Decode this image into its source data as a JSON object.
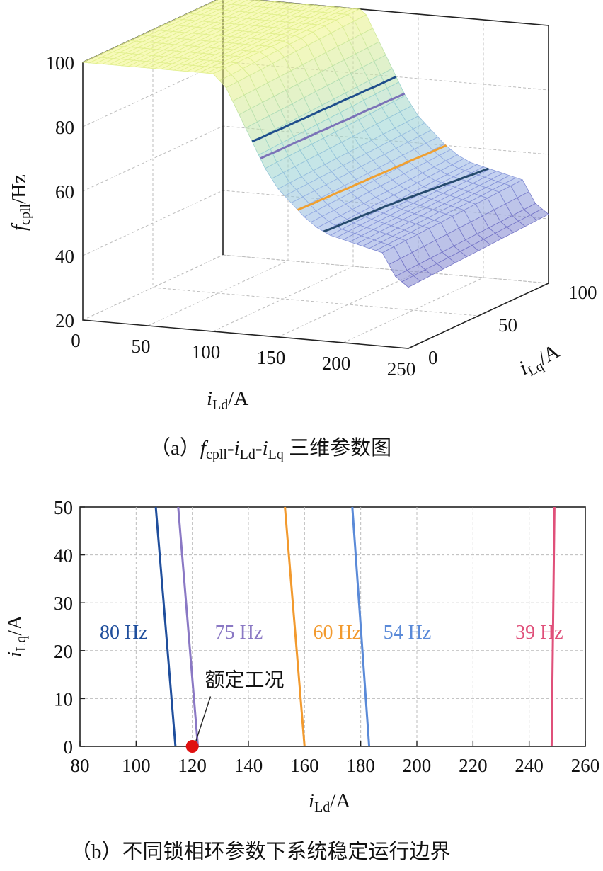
{
  "chart_data": [
    {
      "type": "surface",
      "caption": {
        "prefix": "（a）",
        "f": "f",
        "f_sub": "cpll",
        "dash1": "-",
        "i1": "i",
        "i1_sub": "Ld",
        "dash2": "-",
        "i2": "i",
        "i2_sub": "Lq",
        "suffix": " 三维参数图"
      },
      "xlabel": {
        "main": "i",
        "sub": "Ld",
        "unit": "/A"
      },
      "ylabel": {
        "main": "i",
        "sub": "Lq",
        "unit": "/A"
      },
      "zlabel": {
        "main": "f",
        "sub": "cpll",
        "unit": "/Hz"
      },
      "x_ticks": [
        "0",
        "50",
        "100",
        "150",
        "200",
        "250"
      ],
      "y_ticks": [
        "0",
        "50",
        "100"
      ],
      "z_ticks": [
        "20",
        "40",
        "60",
        "80",
        "100"
      ],
      "xlim": [
        0,
        250
      ],
      "ylim": [
        0,
        100
      ],
      "zlim": [
        20,
        100
      ],
      "grid": true,
      "surface": {
        "x": [
          0,
          20,
          40,
          60,
          80,
          100,
          110,
          120,
          130,
          140,
          150,
          160,
          170,
          180,
          190,
          200,
          210,
          220,
          230,
          240,
          250
        ],
        "z": [
          100,
          100,
          100,
          100,
          100,
          100,
          96,
          88,
          80,
          72,
          66,
          62,
          58,
          55,
          53,
          52,
          51,
          50,
          49,
          42,
          39
        ],
        "lq_slope": 0.6
      },
      "contours": [
        {
          "level": 80,
          "color": "#1f4e8c"
        },
        {
          "level": 75,
          "color": "#7b72b8"
        },
        {
          "level": 60,
          "color": "#f0a030"
        },
        {
          "level": 54,
          "color": "#264a6e"
        },
        {
          "level": 39,
          "color": "#d43c6c"
        }
      ]
    },
    {
      "type": "line",
      "caption": "（b）不同锁相环参数下系统稳定运行边界",
      "xlabel": {
        "main": "i",
        "sub": "Ld",
        "unit": "/A"
      },
      "ylabel": {
        "main": "i",
        "sub": "Lq",
        "unit": "/A"
      },
      "xlim": [
        80,
        260
      ],
      "ylim": [
        0,
        50
      ],
      "x_ticks": [
        80,
        100,
        120,
        140,
        160,
        180,
        200,
        220,
        240,
        260
      ],
      "y_ticks": [
        0,
        10,
        20,
        30,
        40,
        50
      ],
      "grid": true,
      "series": [
        {
          "name": "80 Hz",
          "color": "#1f4e9c",
          "points": [
            [
              114,
              0
            ],
            [
              107,
              50
            ]
          ],
          "label_at": [
            80,
            24
          ]
        },
        {
          "name": "75 Hz",
          "color": "#8a78c4",
          "points": [
            [
              122,
              0
            ],
            [
              115,
              50
            ]
          ],
          "label_at": [
            121,
            24
          ]
        },
        {
          "name": "60 Hz",
          "color": "#f29a2e",
          "points": [
            [
              160,
              0
            ],
            [
              153,
              50
            ]
          ],
          "label_at": [
            156,
            24
          ]
        },
        {
          "name": "54 Hz",
          "color": "#5a8ad8",
          "points": [
            [
              183,
              0
            ],
            [
              177,
              50
            ]
          ],
          "label_at": [
            181,
            24
          ]
        },
        {
          "name": "39 Hz",
          "color": "#e0507a",
          "points": [
            [
              248,
              0
            ],
            [
              249,
              50
            ]
          ],
          "label_at": [
            228,
            24
          ]
        }
      ],
      "annotation": {
        "text": "额定工况",
        "point": [
          120,
          0
        ],
        "text_at": [
          126,
          12.5
        ]
      },
      "marker_color": "#e01010"
    }
  ]
}
